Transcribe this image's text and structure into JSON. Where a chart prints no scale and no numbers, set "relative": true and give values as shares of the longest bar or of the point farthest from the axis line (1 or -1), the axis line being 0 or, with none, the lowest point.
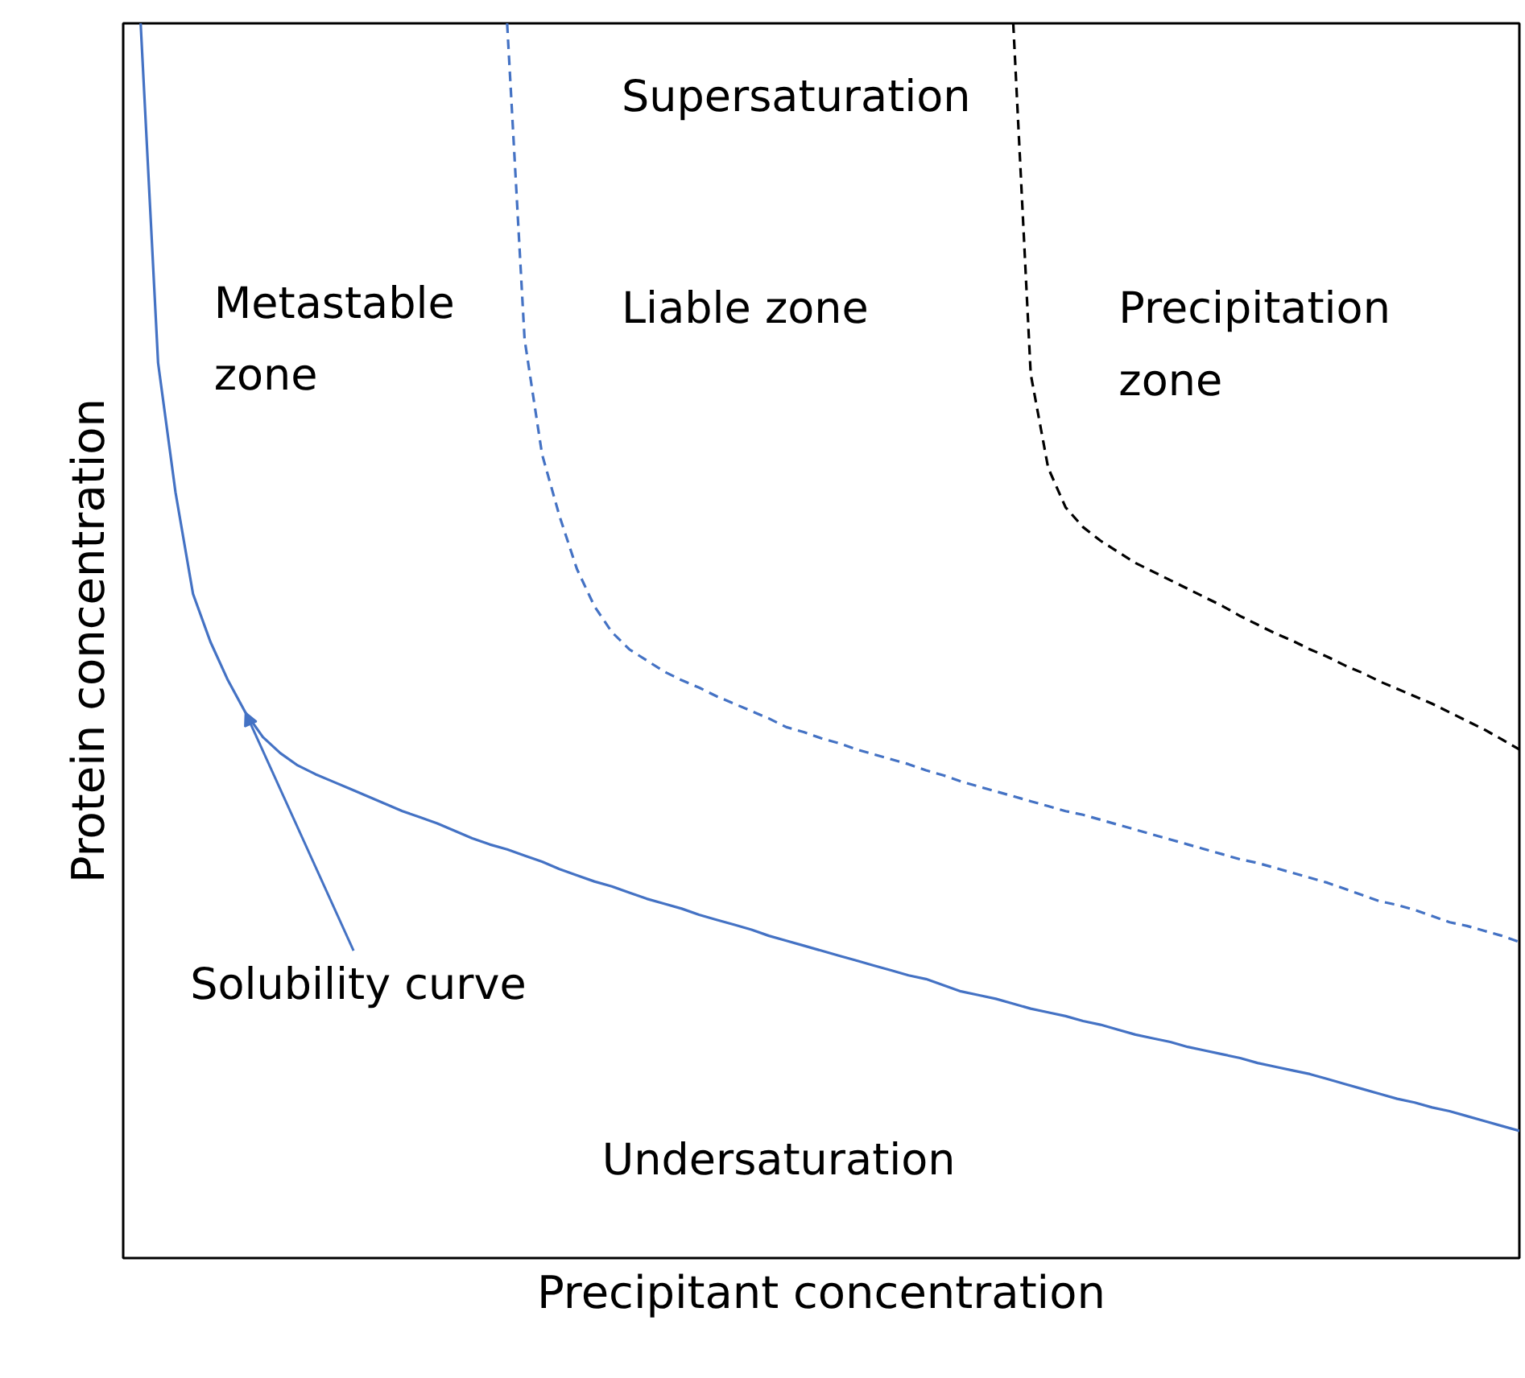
{
  "chart_data": {
    "type": "line",
    "relative": true,
    "xlabel": "Precipitant concentration",
    "ylabel": "Protein concentration",
    "categories": [
      null,
      null,
      null,
      null,
      null,
      null,
      null,
      null,
      null,
      null,
      null,
      null,
      null,
      null,
      null,
      null,
      null,
      null,
      null,
      null,
      null,
      null,
      null,
      null,
      null,
      null,
      null,
      null,
      null,
      null,
      null,
      null,
      null,
      null,
      null,
      null,
      null,
      null,
      null,
      null,
      null,
      null,
      null,
      null,
      null,
      null,
      null,
      null,
      null,
      null,
      null,
      null,
      null,
      null,
      null,
      null,
      null,
      null,
      null,
      null,
      null,
      null,
      null,
      null,
      null,
      null,
      null,
      null,
      null,
      null,
      null,
      null,
      null,
      null,
      null,
      null,
      null,
      null,
      null,
      null,
      null
    ],
    "series": [
      {
        "color": "#4472c4",
        "line_style": "solid",
        "values": [
          null,
          1.0,
          0.725,
          0.62,
          0.538,
          0.499,
          0.468,
          0.442,
          0.422,
          0.409,
          0.399,
          0.392,
          0.386,
          0.38,
          0.374,
          0.368,
          0.362,
          0.357,
          0.352,
          0.346,
          0.34,
          0.335,
          0.331,
          0.326,
          0.321,
          0.315,
          0.31,
          0.305,
          0.301,
          0.296,
          0.291,
          0.287,
          0.283,
          0.278,
          0.274,
          0.27,
          0.266,
          0.261,
          0.257,
          0.253,
          0.249,
          0.245,
          0.241,
          0.237,
          0.233,
          0.229,
          0.226,
          0.221,
          0.216,
          0.213,
          0.21,
          0.206,
          0.202,
          0.199,
          0.196,
          0.192,
          0.189,
          0.185,
          0.181,
          0.178,
          0.175,
          0.171,
          0.168,
          0.165,
          0.162,
          0.158,
          0.155,
          0.152,
          0.149,
          0.145,
          0.141,
          0.137,
          0.133,
          0.129,
          0.126,
          0.122,
          0.119,
          0.115,
          0.111,
          0.107,
          0.103
        ]
      },
      {
        "color": "#4472c4",
        "line_style": "dashed",
        "values": [
          null,
          null,
          null,
          null,
          null,
          null,
          null,
          null,
          null,
          null,
          null,
          null,
          null,
          null,
          null,
          null,
          null,
          null,
          null,
          null,
          null,
          null,
          1.0,
          0.744,
          0.651,
          0.601,
          0.558,
          0.528,
          0.507,
          0.493,
          0.484,
          0.475,
          0.468,
          0.462,
          0.455,
          0.449,
          0.443,
          0.437,
          0.43,
          0.426,
          0.421,
          0.417,
          0.412,
          0.408,
          0.404,
          0.4,
          0.395,
          0.391,
          0.386,
          0.382,
          0.378,
          0.374,
          0.37,
          0.366,
          0.362,
          0.359,
          0.355,
          0.351,
          0.347,
          0.343,
          0.339,
          0.335,
          0.331,
          0.327,
          0.323,
          0.32,
          0.316,
          0.312,
          0.308,
          0.304,
          0.299,
          0.294,
          0.289,
          0.286,
          0.282,
          0.277,
          0.272,
          0.269,
          0.265,
          0.261,
          0.256
        ]
      },
      {
        "color": "#000000",
        "line_style": "dashed",
        "values": [
          null,
          null,
          null,
          null,
          null,
          null,
          null,
          null,
          null,
          null,
          null,
          null,
          null,
          null,
          null,
          null,
          null,
          null,
          null,
          null,
          null,
          null,
          null,
          null,
          null,
          null,
          null,
          null,
          null,
          null,
          null,
          null,
          null,
          null,
          null,
          null,
          null,
          null,
          null,
          null,
          null,
          null,
          null,
          null,
          null,
          null,
          null,
          null,
          null,
          null,
          null,
          1.0,
          0.716,
          0.64,
          0.608,
          0.592,
          0.581,
          0.572,
          0.563,
          0.556,
          0.549,
          0.542,
          0.535,
          0.528,
          0.52,
          0.513,
          0.506,
          0.5,
          0.493,
          0.487,
          0.48,
          0.474,
          0.467,
          0.461,
          0.455,
          0.449,
          0.442,
          0.435,
          0.428,
          0.42,
          0.412
        ]
      }
    ],
    "annotations": [
      "Supersaturation",
      "Metastable\nzone",
      "Liable zone",
      "Precipitation\nzone",
      "Solubility curve",
      "Undersaturation"
    ]
  }
}
